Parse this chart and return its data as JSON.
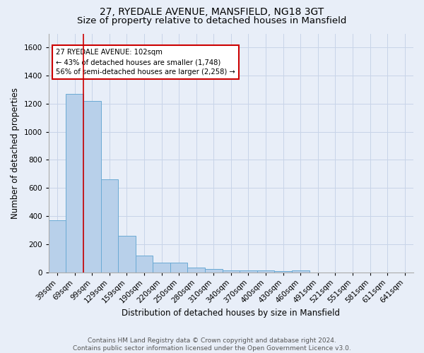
{
  "title": "27, RYEDALE AVENUE, MANSFIELD, NG18 3GT",
  "subtitle": "Size of property relative to detached houses in Mansfield",
  "xlabel": "Distribution of detached houses by size in Mansfield",
  "ylabel": "Number of detached properties",
  "categories": [
    "39sqm",
    "69sqm",
    "99sqm",
    "129sqm",
    "159sqm",
    "190sqm",
    "220sqm",
    "250sqm",
    "280sqm",
    "310sqm",
    "340sqm",
    "370sqm",
    "400sqm",
    "430sqm",
    "460sqm",
    "491sqm",
    "521sqm",
    "551sqm",
    "581sqm",
    "611sqm",
    "641sqm"
  ],
  "values": [
    370,
    1270,
    1220,
    660,
    260,
    120,
    70,
    70,
    35,
    25,
    15,
    15,
    15,
    10,
    15,
    0,
    0,
    0,
    0,
    0,
    0
  ],
  "bar_color": "#b8d0ea",
  "bar_edge_color": "#6aaad4",
  "grid_color": "#c8d4e8",
  "background_color": "#e8eef8",
  "annotation_text": "27 RYEDALE AVENUE: 102sqm\n← 43% of detached houses are smaller (1,748)\n56% of semi-detached houses are larger (2,258) →",
  "annotation_box_color": "#ffffff",
  "annotation_box_edge": "#cc0000",
  "red_line_color": "#cc0000",
  "ylim": [
    0,
    1700
  ],
  "yticks": [
    0,
    200,
    400,
    600,
    800,
    1000,
    1200,
    1400,
    1600
  ],
  "title_fontsize": 10,
  "subtitle_fontsize": 9.5,
  "xlabel_fontsize": 8.5,
  "ylabel_fontsize": 8.5,
  "tick_fontsize": 7.5,
  "footer_fontsize": 6.5,
  "footer": "Contains HM Land Registry data © Crown copyright and database right 2024.\nContains public sector information licensed under the Open Government Licence v3.0."
}
